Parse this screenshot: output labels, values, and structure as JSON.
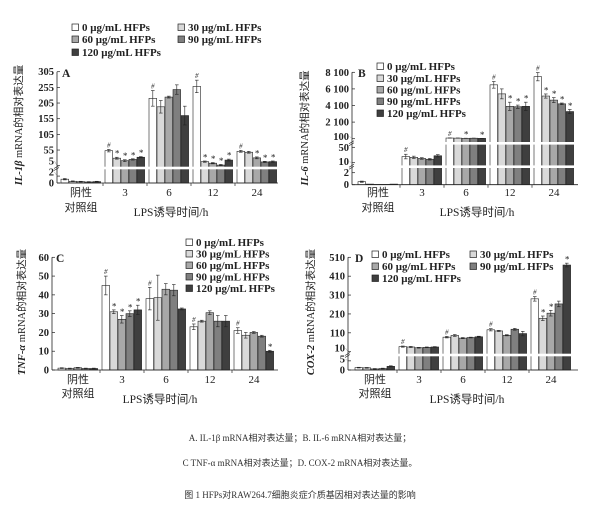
{
  "legend_series": [
    "0 μg/mL HFPs",
    "30 μg/mL HFPs",
    "60 μg/mL HFPs",
    "90 μg/mL HFPs",
    "120 μg/mL HFPs"
  ],
  "colors": [
    "#ffffff",
    "#d9d9d9",
    "#a8a8a8",
    "#7f7f7f",
    "#3f3f3f"
  ],
  "chart_data": [
    {
      "type": "bar",
      "panel_label": "A",
      "ylabel_gene": "IL-1β",
      "ylabel_rest": " mRNA的相对表达量",
      "xlabel": "LPS诱导时间/h",
      "categories": [
        "阴性|对照组",
        "3",
        "6",
        "12",
        "24"
      ],
      "yticks": [
        0,
        2,
        5,
        55,
        105,
        155,
        205,
        255,
        305
      ],
      "ytick_labels": [
        "0",
        "2",
        "5",
        "55",
        "105",
        "155",
        "205",
        "255",
        "305"
      ],
      "ylim": [
        0,
        305
      ],
      "axis_breaks": [
        5
      ],
      "series_values": [
        [
          1.1,
          0.5,
          0.4,
          0.3,
          0.4
        ],
        [
          53,
          29,
          21,
          25,
          32
        ],
        [
          220,
          193,
          224,
          248,
          165
        ],
        [
          258,
          18,
          13,
          7,
          23
        ],
        [
          51,
          48,
          30,
          17,
          18
        ]
      ],
      "errors": [
        [
          0.2,
          0.1,
          0.1,
          0.1,
          0.1
        ],
        [
          4,
          3,
          3,
          2,
          2
        ],
        [
          25,
          20,
          3,
          15,
          30
        ],
        [
          20,
          2,
          2,
          2,
          3
        ],
        [
          3,
          3,
          3,
          2,
          2
        ]
      ],
      "markers": [
        [
          "",
          "",
          "",
          "",
          ""
        ],
        [
          "#",
          "*",
          "*",
          "*",
          "*"
        ],
        [
          "#",
          "",
          "",
          "",
          ""
        ],
        [
          "#",
          "*",
          "*",
          "*",
          "*"
        ],
        [
          "#",
          "",
          "*",
          "*",
          "*"
        ]
      ]
    },
    {
      "type": "bar",
      "panel_label": "B",
      "ylabel_gene": "IL-6",
      "ylabel_rest": " mRNA的相对表达量",
      "xlabel": "LPS诱导时间/h",
      "categories": [
        "阴性|对照组",
        "3",
        "6",
        "12",
        "24"
      ],
      "yticks": [
        0,
        2,
        10,
        50,
        100,
        2100,
        4100,
        6100,
        8100
      ],
      "ytick_labels": [
        "0",
        "2",
        "10",
        "50",
        "100",
        "2 100",
        "4 100",
        "6 100",
        "8 100"
      ],
      "ylim": [
        0,
        8100
      ],
      "axis_breaks": [
        5,
        75
      ],
      "series_values": [
        [
          0.5,
          0.1,
          0,
          0.05,
          0.1
        ],
        [
          26,
          24,
          21,
          19,
          28
        ],
        [
          180,
          170,
          150,
          160,
          140
        ],
        [
          6590,
          5500,
          4000,
          3950,
          4000
        ],
        [
          7570,
          5240,
          4750,
          4300,
          3370
        ]
      ],
      "errors": [
        [
          0.1,
          0,
          0,
          0,
          0
        ],
        [
          6,
          3,
          2,
          2,
          3
        ],
        [
          10,
          8,
          10,
          8,
          10
        ],
        [
          400,
          600,
          500,
          200,
          500
        ],
        [
          500,
          250,
          300,
          100,
          250
        ]
      ],
      "markers": [
        [
          "",
          "",
          "",
          "",
          ""
        ],
        [
          "#",
          "",
          "",
          "",
          ""
        ],
        [
          "#",
          "",
          "*",
          "",
          "*"
        ],
        [
          "#",
          "",
          "*",
          "*",
          "*"
        ],
        [
          "#",
          "*",
          "*",
          "*",
          "*"
        ]
      ]
    },
    {
      "type": "bar",
      "panel_label": "C",
      "ylabel_gene": "TNF-α",
      "ylabel_rest": " mRNA的相对表达量",
      "xlabel": "LPS诱导时间/h",
      "categories": [
        "阴性|对照组",
        "3",
        "6",
        "12",
        "24"
      ],
      "yticks": [
        0,
        10,
        20,
        30,
        40,
        50,
        60
      ],
      "ytick_labels": [
        "0",
        "10",
        "20",
        "30",
        "40",
        "50",
        "60"
      ],
      "ylim": [
        0,
        60
      ],
      "axis_breaks": [],
      "series_values": [
        [
          1,
          0.8,
          1.2,
          0.8,
          0.8
        ],
        [
          45,
          31,
          27,
          30,
          32
        ],
        [
          38,
          38.5,
          43,
          42.5,
          32.5
        ],
        [
          23,
          26,
          30.5,
          26,
          26
        ],
        [
          21,
          18.5,
          20,
          18,
          10
        ]
      ],
      "errors": [
        [
          0.2,
          0.2,
          0.2,
          0.2,
          0.2
        ],
        [
          5,
          1,
          2,
          1.5,
          2.5
        ],
        [
          6,
          12,
          3,
          3,
          0.5
        ],
        [
          1.5,
          0.5,
          1,
          3,
          3
        ],
        [
          1.5,
          1.5,
          0.5,
          0.5,
          0.5
        ]
      ],
      "markers": [
        [
          "",
          "",
          "",
          "",
          ""
        ],
        [
          "#",
          "*",
          "*",
          "*",
          "*"
        ],
        [
          "#",
          "",
          "",
          "",
          ""
        ],
        [
          "#",
          "",
          "",
          "",
          ""
        ],
        [
          "#",
          "",
          "",
          "",
          "*"
        ]
      ]
    },
    {
      "type": "bar",
      "panel_label": "D",
      "ylabel_gene": "COX-2",
      "ylabel_rest": " mRNA的相对表达量",
      "xlabel": "LPS诱导时间/h",
      "categories": [
        "阴性|对照组",
        "3",
        "6",
        "12",
        "24"
      ],
      "yticks": [
        0,
        5,
        10,
        110,
        210,
        310,
        410,
        510
      ],
      "ytick_labels": [
        "0",
        "5",
        "10",
        "110",
        "210",
        "310",
        "410",
        "510"
      ],
      "ylim": [
        0,
        510
      ],
      "axis_breaks": [
        10
      ],
      "series_values": [
        [
          1.3,
          1.2,
          0.6,
          0.8,
          2
        ],
        [
          37,
          35,
          31,
          33,
          35
        ],
        [
          87,
          96,
          82,
          85,
          89
        ],
        [
          126,
          120,
          97,
          129,
          106
        ],
        [
          290,
          187,
          214,
          263,
          469
        ]
      ],
      "errors": [
        [
          0.2,
          0.2,
          0.2,
          0.2,
          0.3
        ],
        [
          3,
          3,
          2,
          2,
          2
        ],
        [
          4,
          5,
          3,
          2,
          3
        ],
        [
          6,
          3,
          3,
          5,
          12
        ],
        [
          12,
          12,
          15,
          15,
          10
        ]
      ],
      "markers": [
        [
          "",
          "",
          "",
          "",
          ""
        ],
        [
          "#",
          "",
          "",
          "",
          ""
        ],
        [
          "#",
          "",
          "",
          "",
          ""
        ],
        [
          "#",
          "",
          "",
          "",
          ""
        ],
        [
          "#",
          "*",
          "*",
          "",
          "*"
        ]
      ]
    }
  ],
  "caption": {
    "line1": "A. IL-1β mRNA相对表达量；B. IL-6 mRNA相对表达量；",
    "line2": "C TNF-α mRNA相对表达量；D. COX-2 mRNA相对表达量。",
    "title": "图 1 HFPs对RAW264.7细胞炎症介质基因相对表达量的影响"
  }
}
